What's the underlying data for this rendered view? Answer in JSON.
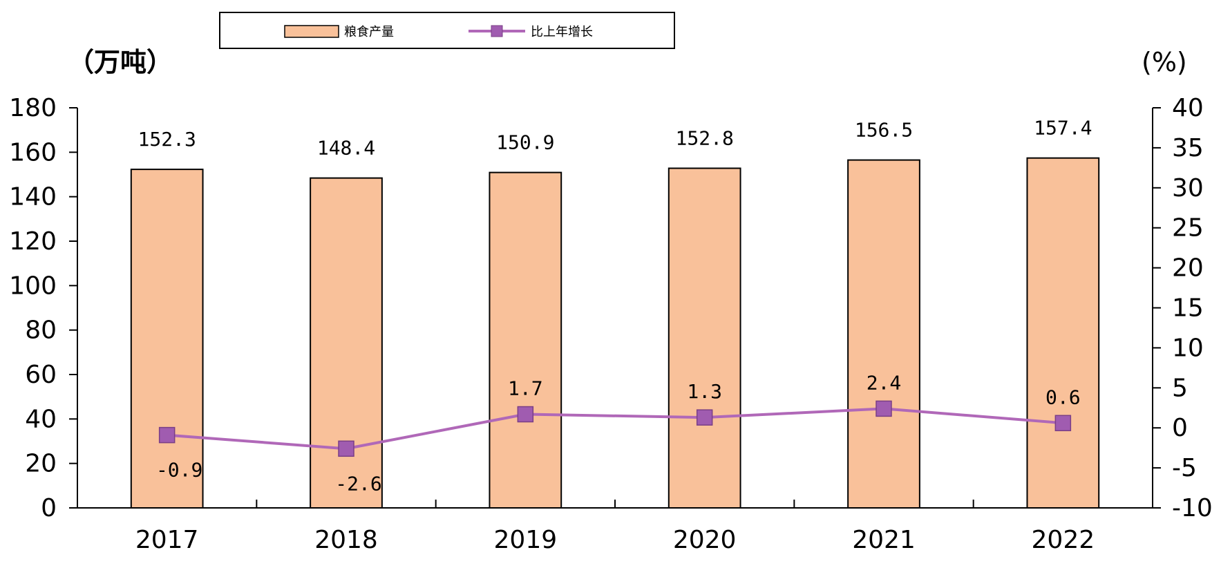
{
  "chart_data": {
    "type": "bar",
    "categories": [
      "2017",
      "2018",
      "2019",
      "2020",
      "2021",
      "2022"
    ],
    "series": [
      {
        "name": "粮食产量",
        "type": "bar",
        "axis": "left",
        "values": [
          152.3,
          148.4,
          150.9,
          152.8,
          156.5,
          157.4
        ],
        "labels": [
          "152.3",
          "148.4",
          "150.9",
          "152.8",
          "156.5",
          "157.4"
        ]
      },
      {
        "name": "比上年增长",
        "type": "line",
        "axis": "right",
        "values": [
          -0.9,
          -2.6,
          1.7,
          1.3,
          2.4,
          0.6
        ],
        "labels": [
          "-0.9",
          "-2.6",
          "1.7",
          "1.3",
          "2.4",
          "0.6"
        ]
      }
    ],
    "ylabel_left": "（万吨）",
    "ylabel_right": "(%)",
    "ylim_left": [
      0,
      180
    ],
    "yticks_left": [
      "0",
      "20",
      "40",
      "60",
      "80",
      "100",
      "120",
      "140",
      "160",
      "180"
    ],
    "ylim_right": [
      -10,
      40
    ],
    "yticks_right": [
      "-10",
      "-5",
      "0",
      "5",
      "10",
      "15",
      "20",
      "25",
      "30",
      "35",
      "40"
    ],
    "legend_position": "top",
    "grid": false,
    "colors": {
      "bar": "#F9C19A",
      "bar_border": "#000000",
      "line": "#B068B8",
      "marker": "#A05CB0"
    }
  }
}
